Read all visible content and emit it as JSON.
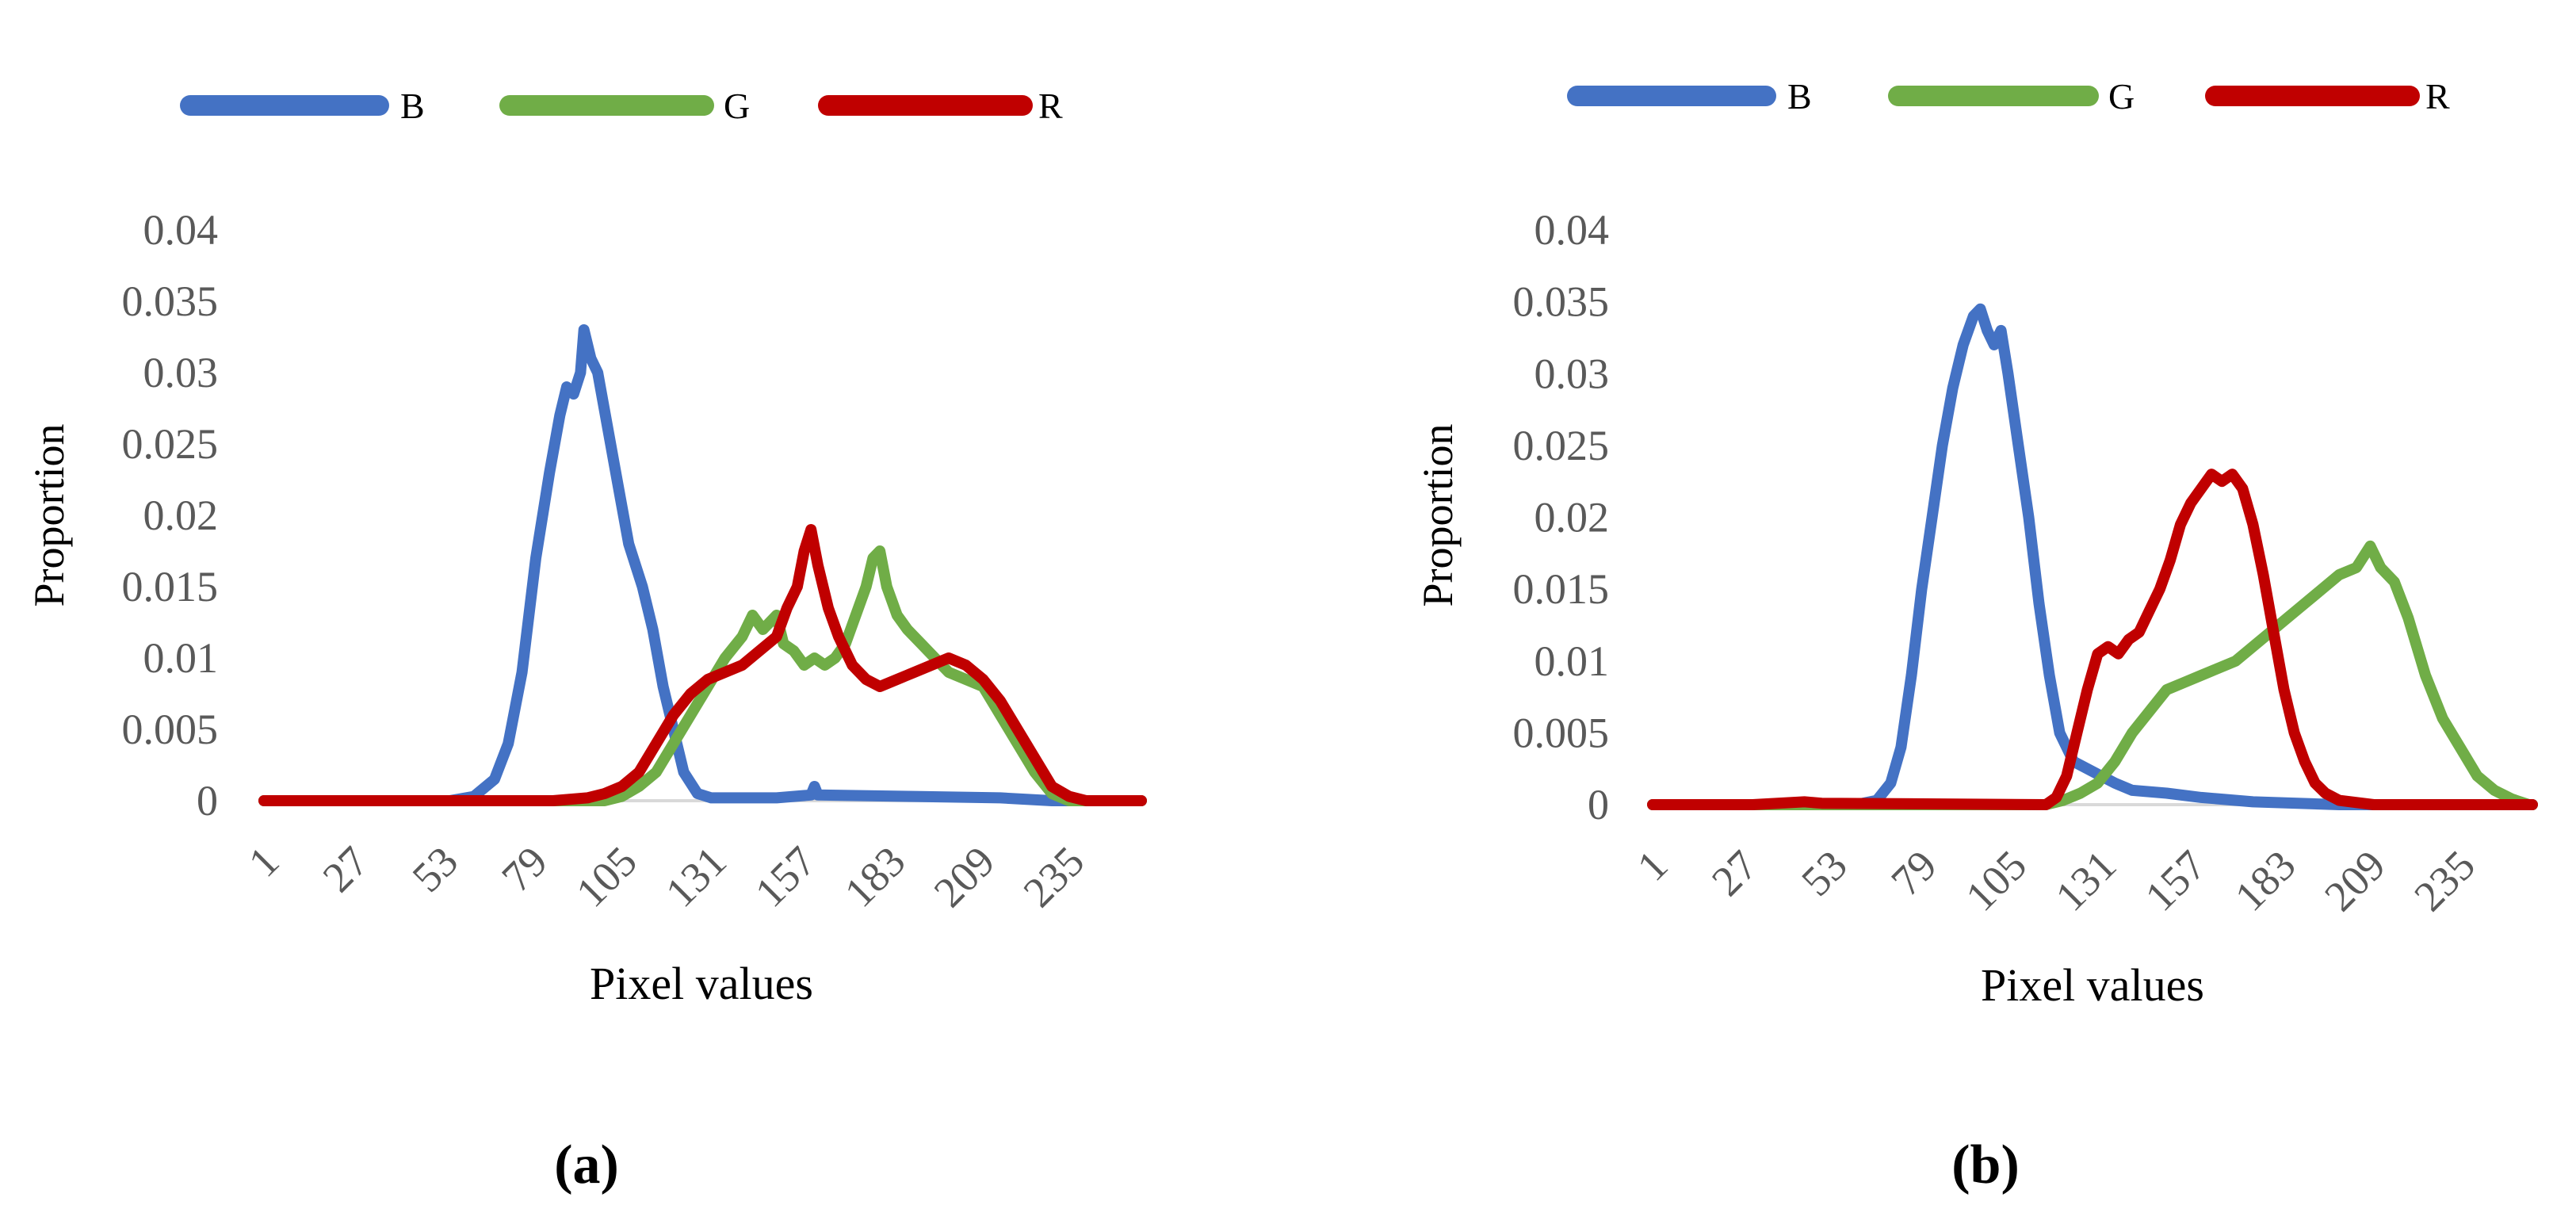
{
  "figure": {
    "panel_labels": [
      "(a)",
      "(b)"
    ]
  },
  "colors": {
    "B": "#4472c4",
    "G": "#70ad47",
    "R": "#c00000",
    "axis_text": "#595959",
    "baseline": "#d9d9d9",
    "label": "#000000"
  },
  "chart_data": [
    {
      "type": "line",
      "panel": "(a)",
      "xlabel": "Pixel values",
      "ylabel": "Proportion",
      "xlim": [
        1,
        256
      ],
      "ylim": [
        0,
        0.04
      ],
      "x_tick_labels": [
        "1",
        "27",
        "53",
        "79",
        "105",
        "131",
        "157",
        "183",
        "209",
        "235"
      ],
      "y_tick_labels": [
        "0",
        "0.005",
        "0.01",
        "0.015",
        "0.02",
        "0.025",
        "0.03",
        "0.035",
        "0.04"
      ],
      "legend": [
        "B",
        "G",
        "R"
      ],
      "series": [
        {
          "name": "B",
          "points": [
            [
              1,
              0
            ],
            [
              55,
              0
            ],
            [
              62,
              0.0003
            ],
            [
              68,
              0.0015
            ],
            [
              72,
              0.004
            ],
            [
              76,
              0.009
            ],
            [
              80,
              0.017
            ],
            [
              84,
              0.023
            ],
            [
              87,
              0.027
            ],
            [
              89,
              0.029
            ],
            [
              91,
              0.0285
            ],
            [
              93,
              0.03
            ],
            [
              94,
              0.033
            ],
            [
              96,
              0.031
            ],
            [
              98,
              0.03
            ],
            [
              101,
              0.026
            ],
            [
              104,
              0.022
            ],
            [
              107,
              0.018
            ],
            [
              111,
              0.015
            ],
            [
              114,
              0.012
            ],
            [
              117,
              0.008
            ],
            [
              120,
              0.005
            ],
            [
              123,
              0.002
            ],
            [
              127,
              0.0005
            ],
            [
              131,
              0.0002
            ],
            [
              150,
              0.0002
            ],
            [
              160,
              0.0004
            ],
            [
              161,
              0.001
            ],
            [
              162,
              0.0004
            ],
            [
              190,
              0.0003
            ],
            [
              215,
              0.0002
            ],
            [
              230,
              0
            ],
            [
              256,
              0
            ]
          ]
        },
        {
          "name": "G",
          "points": [
            [
              1,
              0
            ],
            [
              100,
              0
            ],
            [
              105,
              0.0003
            ],
            [
              110,
              0.001
            ],
            [
              115,
              0.002
            ],
            [
              120,
              0.004
            ],
            [
              125,
              0.006
            ],
            [
              130,
              0.008
            ],
            [
              135,
              0.01
            ],
            [
              140,
              0.0115
            ],
            [
              143,
              0.013
            ],
            [
              146,
              0.012
            ],
            [
              150,
              0.013
            ],
            [
              152,
              0.011
            ],
            [
              155,
              0.0105
            ],
            [
              158,
              0.0095
            ],
            [
              161,
              0.01
            ],
            [
              164,
              0.0095
            ],
            [
              167,
              0.01
            ],
            [
              170,
              0.011
            ],
            [
              173,
              0.013
            ],
            [
              176,
              0.015
            ],
            [
              178,
              0.017
            ],
            [
              180,
              0.0175
            ],
            [
              182,
              0.015
            ],
            [
              185,
              0.013
            ],
            [
              188,
              0.012
            ],
            [
              192,
              0.011
            ],
            [
              196,
              0.01
            ],
            [
              200,
              0.009
            ],
            [
              205,
              0.0085
            ],
            [
              210,
              0.008
            ],
            [
              215,
              0.006
            ],
            [
              220,
              0.004
            ],
            [
              225,
              0.002
            ],
            [
              230,
              0.0005
            ],
            [
              235,
              0
            ],
            [
              256,
              0
            ]
          ]
        },
        {
          "name": "R",
          "points": [
            [
              1,
              0
            ],
            [
              85,
              0
            ],
            [
              95,
              0.0002
            ],
            [
              100,
              0.0005
            ],
            [
              105,
              0.001
            ],
            [
              110,
              0.002
            ],
            [
              115,
              0.004
            ],
            [
              120,
              0.006
            ],
            [
              125,
              0.0075
            ],
            [
              130,
              0.0085
            ],
            [
              135,
              0.009
            ],
            [
              140,
              0.0095
            ],
            [
              145,
              0.0105
            ],
            [
              150,
              0.0115
            ],
            [
              153,
              0.0135
            ],
            [
              156,
              0.015
            ],
            [
              158,
              0.0175
            ],
            [
              160,
              0.019
            ],
            [
              162,
              0.0165
            ],
            [
              165,
              0.0135
            ],
            [
              168,
              0.0115
            ],
            [
              172,
              0.0095
            ],
            [
              176,
              0.0085
            ],
            [
              180,
              0.008
            ],
            [
              185,
              0.0085
            ],
            [
              190,
              0.009
            ],
            [
              195,
              0.0095
            ],
            [
              200,
              0.01
            ],
            [
              205,
              0.0095
            ],
            [
              210,
              0.0085
            ],
            [
              215,
              0.007
            ],
            [
              220,
              0.005
            ],
            [
              225,
              0.003
            ],
            [
              230,
              0.001
            ],
            [
              235,
              0.0003
            ],
            [
              240,
              0
            ],
            [
              256,
              0
            ]
          ]
        }
      ]
    },
    {
      "type": "line",
      "panel": "(b)",
      "xlabel": "Pixel values",
      "ylabel": "Proportion",
      "xlim": [
        1,
        256
      ],
      "ylim": [
        0,
        0.04
      ],
      "x_tick_labels": [
        "1",
        "27",
        "53",
        "79",
        "105",
        "131",
        "157",
        "183",
        "209",
        "235"
      ],
      "y_tick_labels": [
        "0",
        "0.005",
        "0.01",
        "0.015",
        "0.02",
        "0.025",
        "0.03",
        "0.035",
        "0.04"
      ],
      "legend": [
        "B",
        "G",
        "R"
      ],
      "series": [
        {
          "name": "B",
          "points": [
            [
              1,
              0
            ],
            [
              60,
              0
            ],
            [
              66,
              0.0003
            ],
            [
              70,
              0.0015
            ],
            [
              73,
              0.004
            ],
            [
              76,
              0.009
            ],
            [
              79,
              0.015
            ],
            [
              82,
              0.02
            ],
            [
              85,
              0.025
            ],
            [
              88,
              0.029
            ],
            [
              91,
              0.032
            ],
            [
              94,
              0.034
            ],
            [
              96,
              0.0345
            ],
            [
              98,
              0.033
            ],
            [
              100,
              0.032
            ],
            [
              102,
              0.033
            ],
            [
              104,
              0.03
            ],
            [
              107,
              0.025
            ],
            [
              110,
              0.02
            ],
            [
              113,
              0.014
            ],
            [
              116,
              0.009
            ],
            [
              119,
              0.005
            ],
            [
              123,
              0.003
            ],
            [
              127,
              0.0025
            ],
            [
              131,
              0.002
            ],
            [
              135,
              0.0015
            ],
            [
              140,
              0.001
            ],
            [
              150,
              0.0008
            ],
            [
              160,
              0.0005
            ],
            [
              175,
              0.0002
            ],
            [
              200,
              0
            ],
            [
              256,
              0
            ]
          ]
        },
        {
          "name": "G",
          "points": [
            [
              1,
              0
            ],
            [
              115,
              0
            ],
            [
              120,
              0.0003
            ],
            [
              125,
              0.0008
            ],
            [
              130,
              0.0015
            ],
            [
              135,
              0.003
            ],
            [
              140,
              0.005
            ],
            [
              145,
              0.0065
            ],
            [
              150,
              0.008
            ],
            [
              155,
              0.0085
            ],
            [
              160,
              0.009
            ],
            [
              165,
              0.0095
            ],
            [
              170,
              0.01
            ],
            [
              175,
              0.011
            ],
            [
              180,
              0.012
            ],
            [
              185,
              0.013
            ],
            [
              190,
              0.014
            ],
            [
              195,
              0.015
            ],
            [
              200,
              0.016
            ],
            [
              205,
              0.0165
            ],
            [
              209,
              0.018
            ],
            [
              212,
              0.0165
            ],
            [
              216,
              0.0155
            ],
            [
              220,
              0.013
            ],
            [
              225,
              0.009
            ],
            [
              230,
              0.006
            ],
            [
              235,
              0.004
            ],
            [
              240,
              0.002
            ],
            [
              245,
              0.001
            ],
            [
              250,
              0.0004
            ],
            [
              255,
              0
            ],
            [
              256,
              0
            ]
          ]
        },
        {
          "name": "R",
          "points": [
            [
              1,
              0
            ],
            [
              30,
              0
            ],
            [
              45,
              0.0002
            ],
            [
              50,
              0.0001
            ],
            [
              115,
              0
            ],
            [
              118,
              0.0005
            ],
            [
              121,
              0.002
            ],
            [
              124,
              0.005
            ],
            [
              127,
              0.008
            ],
            [
              130,
              0.0105
            ],
            [
              133,
              0.011
            ],
            [
              136,
              0.0105
            ],
            [
              139,
              0.0115
            ],
            [
              142,
              0.012
            ],
            [
              145,
              0.0135
            ],
            [
              148,
              0.015
            ],
            [
              151,
              0.017
            ],
            [
              154,
              0.0195
            ],
            [
              157,
              0.021
            ],
            [
              160,
              0.022
            ],
            [
              163,
              0.023
            ],
            [
              166,
              0.0225
            ],
            [
              169,
              0.023
            ],
            [
              172,
              0.022
            ],
            [
              175,
              0.0195
            ],
            [
              178,
              0.016
            ],
            [
              181,
              0.012
            ],
            [
              184,
              0.008
            ],
            [
              187,
              0.005
            ],
            [
              190,
              0.003
            ],
            [
              193,
              0.0015
            ],
            [
              196,
              0.0008
            ],
            [
              200,
              0.0003
            ],
            [
              210,
              0
            ],
            [
              256,
              0
            ]
          ]
        }
      ]
    }
  ]
}
